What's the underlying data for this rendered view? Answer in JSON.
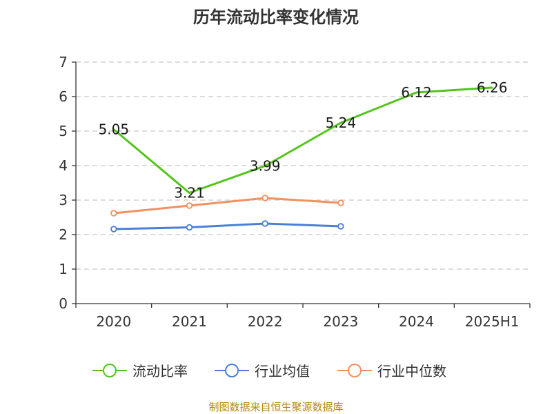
{
  "chart_data": {
    "type": "line",
    "title": "历年流动比率变化情况",
    "categories": [
      "2020",
      "2021",
      "2022",
      "2023",
      "2024",
      "2025H1"
    ],
    "ylim": [
      0,
      7
    ],
    "yticks": [
      "0",
      "1",
      "2",
      "3",
      "4",
      "5",
      "6",
      "7"
    ],
    "grid": true,
    "legend_position": "bottom",
    "series": [
      {
        "name": "流动比率",
        "color": "#52c41a",
        "values": [
          5.05,
          3.21,
          3.99,
          5.24,
          6.12,
          6.26
        ],
        "labels": [
          "5.05",
          "3.21",
          "3.99",
          "5.24",
          "6.12",
          "6.26"
        ],
        "markers": false
      },
      {
        "name": "行业均值",
        "color": "#4a7fd8",
        "values": [
          2.16,
          2.21,
          2.32,
          2.24,
          null,
          null
        ],
        "markers": true
      },
      {
        "name": "行业中位数",
        "color": "#f39060",
        "values": [
          2.62,
          2.84,
          3.06,
          2.92,
          null,
          null
        ],
        "markers": true
      }
    ]
  },
  "source": "制图数据来自恒生聚源数据库"
}
